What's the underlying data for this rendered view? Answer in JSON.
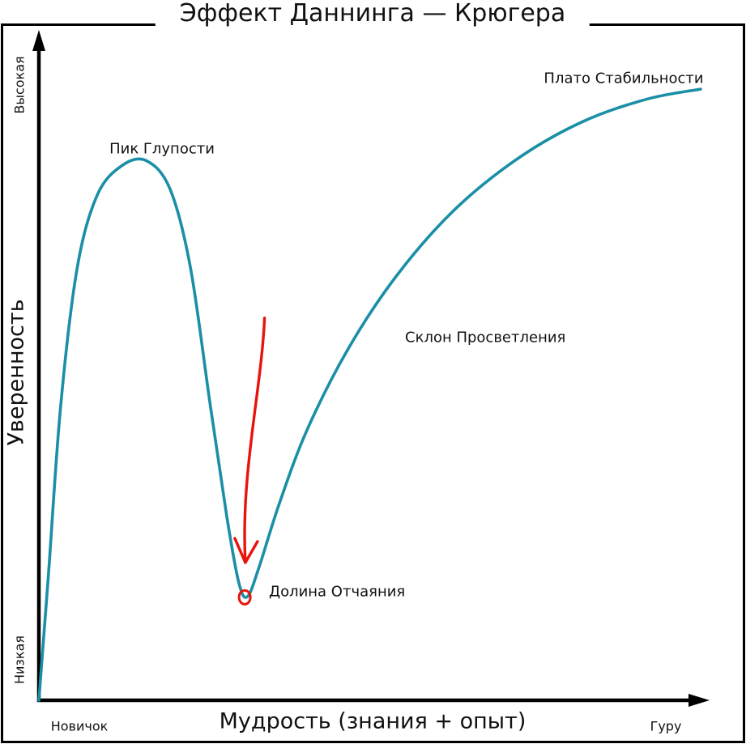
{
  "chart_data": {
    "type": "line",
    "title": "Эффект Даннинга — Крюгера",
    "xlabel": "Мудрость (знания + опыт)",
    "ylabel": "Уверенность",
    "x_tick_labels": {
      "min": "Новичок",
      "max": "Гуру"
    },
    "y_tick_labels": {
      "min": "Низкая",
      "max": "Высокая"
    },
    "xlim": [
      0,
      100
    ],
    "ylim": [
      0,
      100
    ],
    "grid": false,
    "legend": false,
    "curve_color": "#1b8fa6",
    "axis_color": "#000000",
    "text_color": "#111111",
    "series": [
      {
        "points": [
          [
            0,
            0
          ],
          [
            1.5,
            20
          ],
          [
            3.3,
            45
          ],
          [
            5.8,
            66
          ],
          [
            8.8,
            77
          ],
          [
            12.5,
            81.5
          ],
          [
            16.2,
            82.3
          ],
          [
            19.8,
            78
          ],
          [
            22.9,
            66
          ],
          [
            25.9,
            45
          ],
          [
            28.4,
            28
          ],
          [
            30.2,
            18
          ],
          [
            31.5,
            15.8
          ],
          [
            33.3,
            20.4
          ],
          [
            36.4,
            30.2
          ],
          [
            40.6,
            41.4
          ],
          [
            46.8,
            53.7
          ],
          [
            54.1,
            64.8
          ],
          [
            62.7,
            74.7
          ],
          [
            72.5,
            82.7
          ],
          [
            82.3,
            88.3
          ],
          [
            92,
            91.7
          ],
          [
            100,
            93.2
          ]
        ]
      }
    ],
    "annotations": [
      {
        "label": "Пик Глупости",
        "x": 16.2,
        "y": 82.3
      },
      {
        "label": "Долина Отчаяния",
        "x": 31.5,
        "y": 15.8
      },
      {
        "label": "Склон Просветления",
        "x": 55,
        "y": 55
      },
      {
        "label": "Плато Стабильности",
        "x": 88,
        "y": 93
      }
    ],
    "hand_annotation": {
      "color": "#e8140c",
      "arrow_from": [
        34.1,
        58.3
      ],
      "arrow_to": [
        31.2,
        21.0
      ],
      "circle_center": [
        31.1,
        15.7
      ],
      "circle_radius": 1.0
    }
  }
}
